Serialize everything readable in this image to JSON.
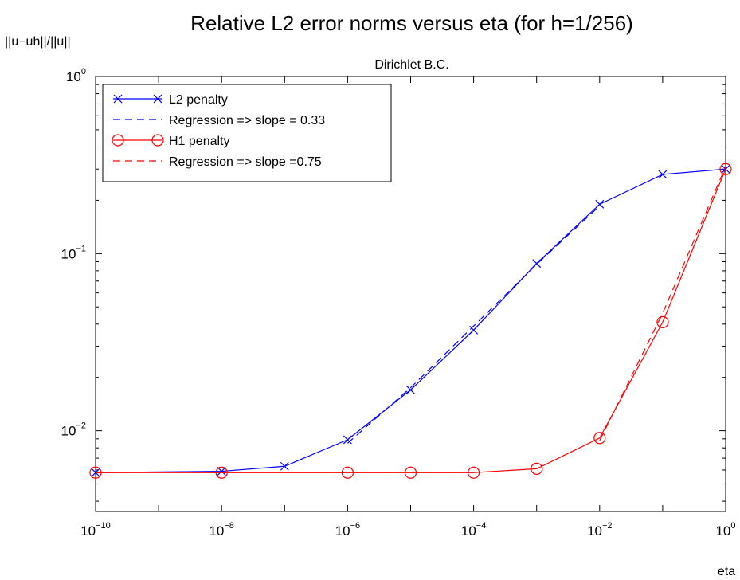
{
  "chart_data": {
    "type": "line",
    "title": "Relative L2 error norms versus eta  (for h=1/256)",
    "subtitle": "Dirichlet B.C.",
    "xlabel": "eta",
    "ylabel": "||u−uh||/||u||",
    "xscale": "log",
    "yscale": "log",
    "xlim": [
      1e-10,
      1
    ],
    "ylim": [
      0.0035,
      1
    ],
    "x_ticks": [
      {
        "base": "10",
        "exp": "−10",
        "value": 1e-10
      },
      {
        "base": "10",
        "exp": "−8",
        "value": 1e-08
      },
      {
        "base": "10",
        "exp": "−6",
        "value": 1e-06
      },
      {
        "base": "10",
        "exp": "−4",
        "value": 0.0001
      },
      {
        "base": "10",
        "exp": "−2",
        "value": 0.01
      },
      {
        "base": "10",
        "exp": "0",
        "value": 1
      }
    ],
    "y_ticks": [
      {
        "base": "10",
        "exp": "−2",
        "value": 0.01
      },
      {
        "base": "10",
        "exp": "−1",
        "value": 0.1
      },
      {
        "base": "10",
        "exp": "0",
        "value": 1
      }
    ],
    "grid": false,
    "legend_position": "top-left",
    "series": [
      {
        "name": "L2 penalty",
        "color": "#0000ff",
        "line_style": "solid",
        "marker": "x",
        "x": [
          1e-10,
          1e-08,
          1e-07,
          1e-06,
          1e-05,
          0.0001,
          0.001,
          0.01,
          0.1,
          1
        ],
        "y": [
          0.0058,
          0.0059,
          0.0063,
          0.0089,
          0.017,
          0.037,
          0.088,
          0.19,
          0.28,
          0.3
        ]
      },
      {
        "name": "Regression => slope = 0.33",
        "color": "#0000ff",
        "line_style": "dashed",
        "marker": "none",
        "x": [
          1e-06,
          1e-05,
          0.0001,
          0.001,
          0.01
        ],
        "y": [
          0.0085,
          0.0175,
          0.039,
          0.087,
          0.186
        ]
      },
      {
        "name": "H1 penalty",
        "color": "#ff0000",
        "line_style": "solid",
        "marker": "o",
        "x": [
          1e-10,
          1e-08,
          1e-06,
          1e-05,
          0.0001,
          0.001,
          0.01,
          0.1,
          1
        ],
        "y": [
          0.0058,
          0.0058,
          0.0058,
          0.0058,
          0.0058,
          0.0061,
          0.0091,
          0.041,
          0.3
        ]
      },
      {
        "name": "Regression => slope =0.75",
        "color": "#ff0000",
        "line_style": "dashed",
        "marker": "none",
        "x": [
          0.01,
          0.1,
          1
        ],
        "y": [
          0.0088,
          0.046,
          0.31
        ]
      }
    ]
  }
}
